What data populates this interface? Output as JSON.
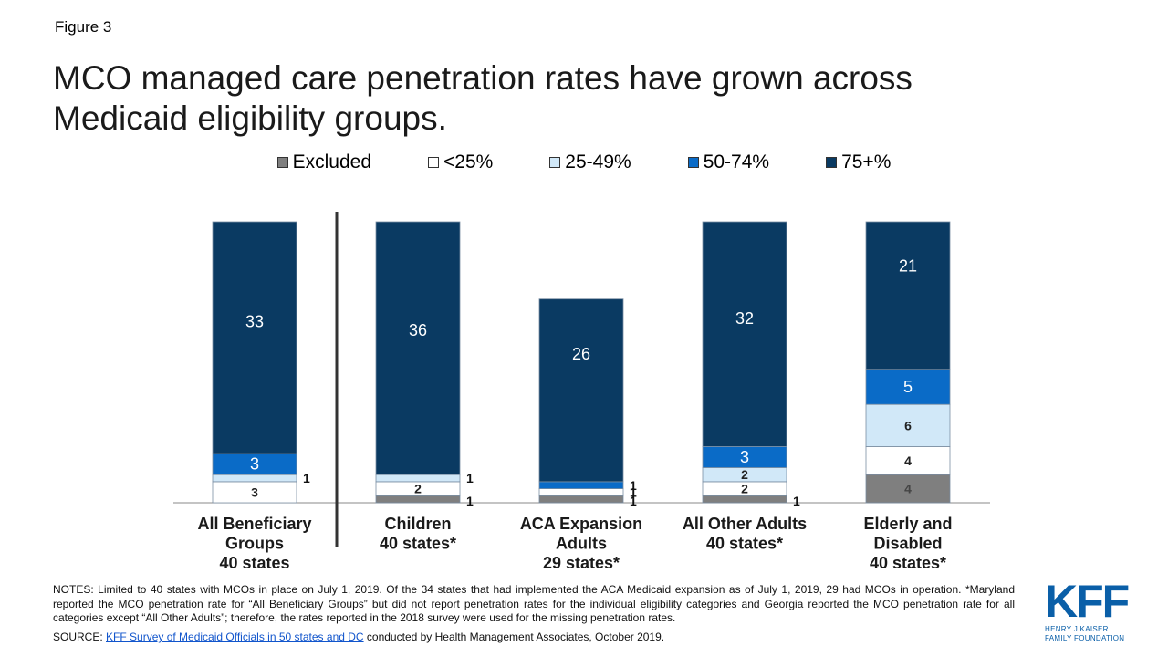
{
  "figure_label": "Figure 3",
  "title": "MCO managed care penetration rates have grown across Medicaid eligibility groups.",
  "legend": [
    {
      "label": "Excluded",
      "color": "#7f7f7f"
    },
    {
      "label": "<25%",
      "color": "#ffffff"
    },
    {
      "label": "25-49%",
      "color": "#d1e8f8"
    },
    {
      "label": "50-74%",
      "color": "#0a6bc7"
    },
    {
      "label": "75+%",
      "color": "#0a3a62"
    }
  ],
  "chart_data": {
    "type": "bar",
    "stacked": true,
    "categories": [
      [
        "All Beneficiary",
        "Groups",
        "40 states"
      ],
      [
        "Children",
        "40 states*"
      ],
      [
        "ACA Expansion",
        "Adults",
        "29 states*"
      ],
      [
        "All Other Adults",
        "40 states*"
      ],
      [
        "Elderly and",
        "Disabled",
        "40 states*"
      ]
    ],
    "series": [
      {
        "name": "Excluded",
        "values": [
          0,
          1,
          1,
          1,
          4
        ]
      },
      {
        "name": "<25%",
        "values": [
          3,
          2,
          1,
          2,
          4
        ]
      },
      {
        "name": "25-49%",
        "values": [
          1,
          1,
          0,
          2,
          6
        ]
      },
      {
        "name": "50-74%",
        "values": [
          3,
          0,
          1,
          3,
          5
        ]
      },
      {
        "name": "75+%",
        "values": [
          33,
          36,
          26,
          32,
          21
        ]
      }
    ],
    "ylim": [
      0,
      40
    ],
    "grid": false,
    "legend_position": "top"
  },
  "notes": "NOTES: Limited to 40 states with MCOs in place on July 1, 2019. Of the 34 states that had implemented the ACA Medicaid expansion as of July 1, 2019, 29 had MCOs in operation. *Maryland reported the MCO penetration rate for “All Beneficiary Groups” but did not report penetration rates for the individual eligibility categories and Georgia reported the MCO penetration rate for all categories except “All Other Adults”; therefore, the rates reported in the 2018 survey were used for the missing penetration rates.",
  "source": {
    "prefix": "SOURCE: ",
    "link_text": "KFF Survey of Medicaid Officials in 50 states and DC",
    "suffix": " conducted by Health Management Associates, October 2019."
  },
  "logo": {
    "text": "KFF",
    "line1": "HENRY J KAISER",
    "line2": "FAMILY FOUNDATION"
  }
}
